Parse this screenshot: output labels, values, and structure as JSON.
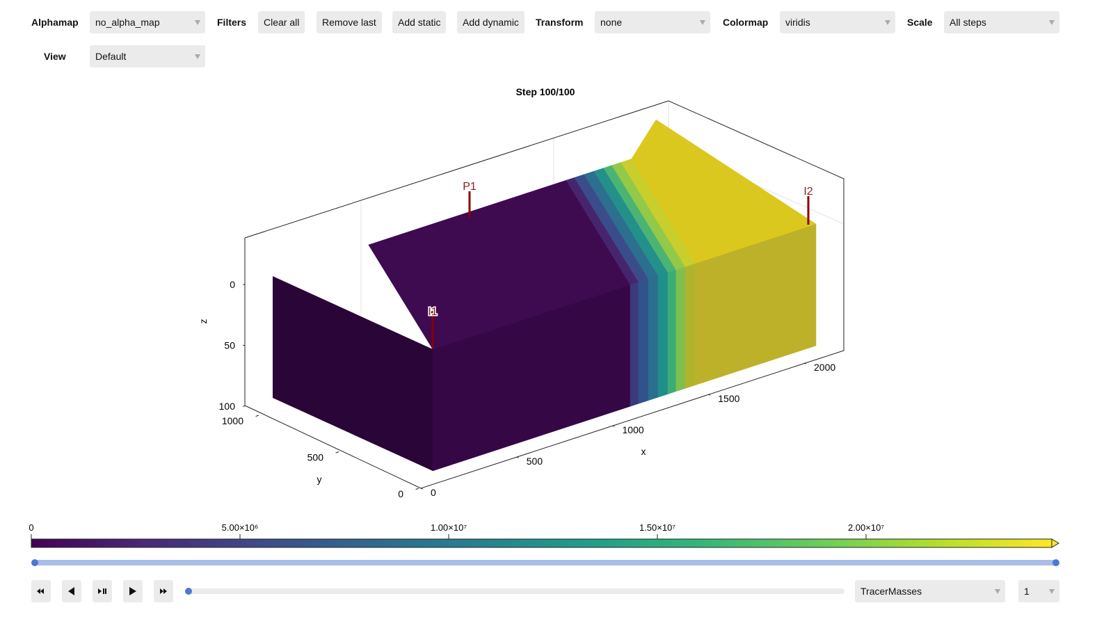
{
  "toolbar": {
    "alphamap": {
      "label": "Alphamap",
      "value": "no_alpha_map"
    },
    "filters": {
      "label": "Filters",
      "buttons": [
        "Clear all",
        "Remove last",
        "Add static",
        "Add dynamic"
      ]
    },
    "transform": {
      "label": "Transform",
      "value": "none"
    },
    "colormap": {
      "label": "Colormap",
      "value": "viridis"
    },
    "scale": {
      "label": "Scale",
      "value": "All steps"
    },
    "view": {
      "label": "View",
      "value": "Default"
    }
  },
  "plot": {
    "title": "Step 100/100",
    "x_axis": {
      "label": "x",
      "ticks": [
        0,
        500,
        1000,
        1500,
        2000
      ]
    },
    "y_axis": {
      "label": "y",
      "ticks": [
        0,
        500,
        1000
      ]
    },
    "z_axis": {
      "label": "z",
      "ticks": [
        0,
        50,
        100
      ]
    },
    "wells": [
      "P1",
      "I1",
      "I2"
    ]
  },
  "colorbar": {
    "limits": [
      0,
      24450000
    ],
    "ticks": [
      0,
      {
        "value": 5000000,
        "label": "5.00×10⁶"
      },
      {
        "value": 10000000,
        "label": "1.00×10⁷"
      },
      {
        "value": 15000000,
        "label": "1.50×10⁷"
      },
      {
        "value": 20000000,
        "label": "2.00×10⁷"
      }
    ]
  },
  "playback": {
    "variable": "TracerMasses",
    "index": "1"
  }
}
